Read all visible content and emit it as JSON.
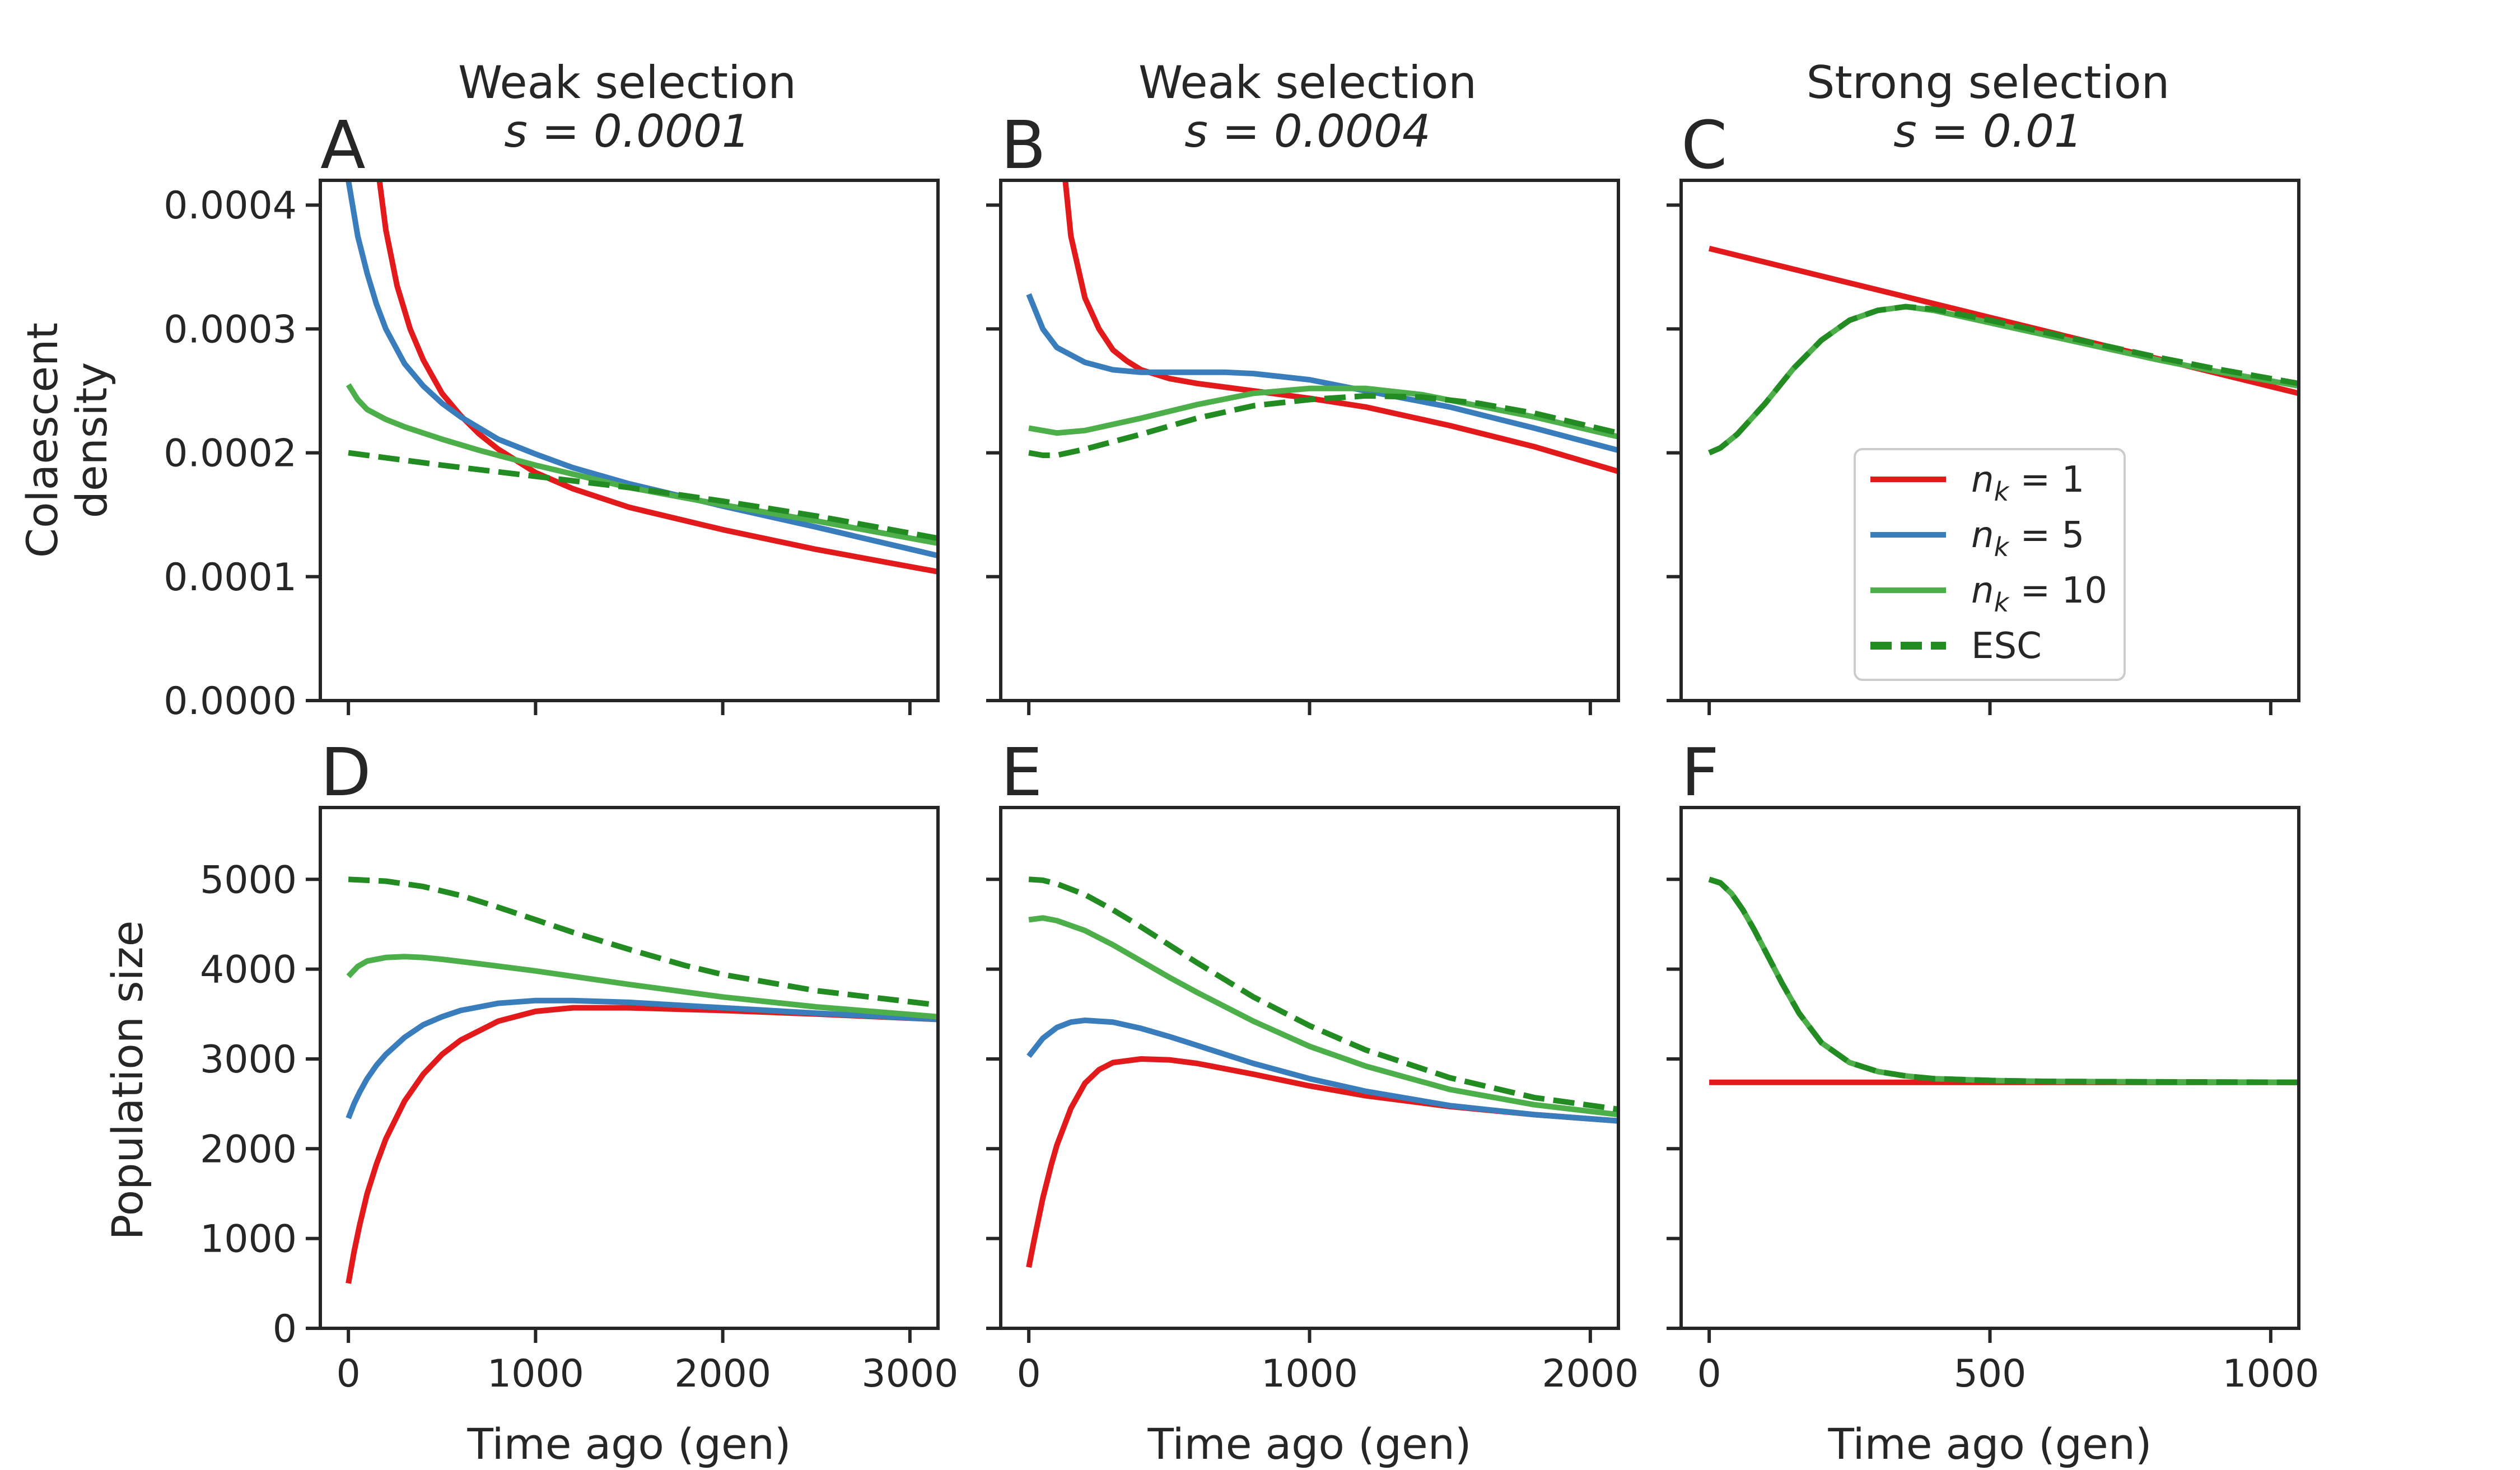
{
  "columns": [
    {
      "title": "Weak selection",
      "param": "s = 0.0001"
    },
    {
      "title": "Weak selection",
      "param": "s = 0.0004"
    },
    {
      "title": "Strong selection",
      "param": "s = 0.01"
    }
  ],
  "panel_letters": [
    "A",
    "B",
    "C",
    "D",
    "E",
    "F"
  ],
  "x_axis_label": "Time ago (gen)",
  "row_labels": {
    "top": [
      "Colaescent",
      "density"
    ],
    "bottom": "Population size"
  },
  "legend": {
    "entries": [
      {
        "key": "n1",
        "label_main": "n",
        "label_sub": "k",
        "label_tail": " = 1"
      },
      {
        "key": "n5",
        "label_main": "n",
        "label_sub": "k",
        "label_tail": " = 5"
      },
      {
        "key": "n10",
        "label_main": "n",
        "label_sub": "k",
        "label_tail": " = 10"
      },
      {
        "key": "esc",
        "label_main": "ESC",
        "label_sub": "",
        "label_tail": ""
      }
    ]
  },
  "colors": {
    "n1": "#e31a1c",
    "n5": "#3a7dbc",
    "n10": "#4daf4a",
    "esc": "#228b22"
  },
  "chart_data": {
    "type": "line",
    "layout": "2x3 grid",
    "series_styles": {
      "n1": {
        "color": "#e31a1c",
        "dash": "solid"
      },
      "n5": {
        "color": "#3a7dbc",
        "dash": "solid"
      },
      "n10": {
        "color": "#4daf4a",
        "dash": "solid"
      },
      "esc": {
        "color": "#228b22",
        "dash": "dashed"
      }
    },
    "columns": [
      {
        "xlim": [
          -150,
          3150
        ],
        "xticks": [
          0,
          1000,
          2000,
          3000
        ],
        "xtick_labels": [
          "0",
          "1000",
          "2000",
          "3000"
        ]
      },
      {
        "xlim": [
          -100,
          2100
        ],
        "xticks": [
          0,
          1000,
          2000
        ],
        "xtick_labels": [
          "0",
          "1000",
          "2000"
        ]
      },
      {
        "xlim": [
          -50,
          1050
        ],
        "xticks": [
          0,
          500,
          1000
        ],
        "xtick_labels": [
          "0",
          "500",
          "1000"
        ]
      }
    ],
    "rows": [
      {
        "ylim": [
          0,
          0.00042
        ],
        "yticks": [
          0,
          0.0001,
          0.0002,
          0.0003,
          0.0004
        ],
        "ytick_labels": [
          "0.0000",
          "0.0001",
          "0.0002",
          "0.0003",
          "0.0004"
        ]
      },
      {
        "ylim": [
          0,
          5800
        ],
        "yticks": [
          0,
          1000,
          2000,
          3000,
          4000,
          5000
        ],
        "ytick_labels": [
          "0",
          "1000",
          "2000",
          "3000",
          "4000",
          "5000"
        ]
      }
    ],
    "panels": [
      {
        "letter": "A",
        "row": 0,
        "col": 0,
        "series": [
          {
            "key": "n1",
            "x": [
              140,
              200,
              260,
              330,
              400,
              500,
              600,
              700,
              800,
              1000,
              1200,
              1500,
              2000,
              2500,
              3150
            ],
            "y": [
              0.00045,
              0.00038,
              0.000335,
              0.0003,
              0.000275,
              0.000248,
              0.00023,
              0.000215,
              0.000203,
              0.000184,
              0.000171,
              0.000156,
              0.000138,
              0.000122,
              0.000104
            ]
          },
          {
            "key": "n5",
            "x": [
              0,
              50,
              100,
              150,
              200,
              300,
              400,
              500,
              600,
              800,
              1000,
              1200,
              1500,
              2000,
              2500,
              3150
            ],
            "y": [
              0.00042,
              0.000375,
              0.000345,
              0.00032,
              0.0003,
              0.000272,
              0.000254,
              0.00024,
              0.000229,
              0.000211,
              0.000199,
              0.000188,
              0.000175,
              0.000157,
              0.00014,
              0.000117
            ]
          },
          {
            "key": "n10",
            "x": [
              0,
              50,
              100,
              200,
              300,
              400,
              500,
              700,
              1000,
              1500,
              2000,
              2500,
              3150
            ],
            "y": [
              0.000255,
              0.000243,
              0.000235,
              0.000227,
              0.000221,
              0.000216,
              0.000211,
              0.000202,
              0.00019,
              0.000172,
              0.000158,
              0.000145,
              0.000127
            ]
          },
          {
            "key": "esc",
            "x": [
              0,
              500,
              1000,
              1500,
              2000,
              2500,
              3150
            ],
            "y": [
              0.0002,
              0.00019,
              0.000181,
              0.000172,
              0.000161,
              0.000149,
              0.000131
            ]
          }
        ]
      },
      {
        "letter": "B",
        "row": 0,
        "col": 1,
        "series": [
          {
            "key": "n1",
            "x": [
              130,
              150,
              200,
              250,
              300,
              350,
              400,
              500,
              600,
              800,
              1000,
              1200,
              1500,
              1800,
              2100
            ],
            "y": [
              0.00042,
              0.000375,
              0.000325,
              0.0003,
              0.000283,
              0.000274,
              0.000267,
              0.00026,
              0.000256,
              0.00025,
              0.000244,
              0.000237,
              0.000222,
              0.000205,
              0.000185
            ]
          },
          {
            "key": "n5",
            "x": [
              0,
              50,
              100,
              200,
              300,
              400,
              500,
              700,
              800,
              1000,
              1200,
              1500,
              1800,
              2100
            ],
            "y": [
              0.000328,
              0.0003,
              0.000285,
              0.000273,
              0.000267,
              0.000265,
              0.000265,
              0.000265,
              0.000264,
              0.000259,
              0.00025,
              0.000237,
              0.00022,
              0.000202
            ]
          },
          {
            "key": "n10",
            "x": [
              0,
              100,
              200,
              400,
              600,
              800,
              1000,
              1200,
              1400,
              1600,
              1800,
              2100
            ],
            "y": [
              0.00022,
              0.000216,
              0.000218,
              0.000228,
              0.000239,
              0.000248,
              0.000252,
              0.000252,
              0.000247,
              0.000238,
              0.000229,
              0.000213
            ]
          },
          {
            "key": "esc",
            "x": [
              0,
              50,
              100,
              200,
              400,
              600,
              800,
              1000,
              1200,
              1400,
              1600,
              1800,
              2100
            ],
            "y": [
              0.0002,
              0.000198,
              0.000198,
              0.000203,
              0.000215,
              0.000228,
              0.000238,
              0.000243,
              0.000246,
              0.000245,
              0.00024,
              0.000232,
              0.000216
            ]
          }
        ]
      },
      {
        "letter": "C",
        "row": 0,
        "col": 2,
        "series": [
          {
            "key": "n1",
            "x": [
              0,
              1050
            ],
            "y": [
              0.000365,
              0.000248
            ]
          },
          {
            "key": "n10",
            "x": [
              0,
              20,
              50,
              100,
              150,
              200,
              250,
              300,
              350,
              400,
              500,
              600,
              700,
              800,
              900,
              1050
            ],
            "y": [
              0.0002,
              0.000204,
              0.000215,
              0.00024,
              0.000268,
              0.000291,
              0.000307,
              0.000315,
              0.000318,
              0.000315,
              0.000305,
              0.000295,
              0.000285,
              0.000275,
              0.000266,
              0.000254
            ]
          },
          {
            "key": "esc",
            "x": [
              0,
              20,
              50,
              100,
              150,
              200,
              250,
              300,
              350,
              400,
              500,
              600,
              700,
              800,
              900,
              1050
            ],
            "y": [
              0.0002,
              0.000204,
              0.000215,
              0.00024,
              0.000268,
              0.000291,
              0.000307,
              0.000315,
              0.000318,
              0.000316,
              0.000307,
              0.000297,
              0.000287,
              0.000277,
              0.000268,
              0.000256
            ]
          }
        ]
      },
      {
        "letter": "D",
        "row": 1,
        "col": 0,
        "series": [
          {
            "key": "n1",
            "x": [
              0,
              30,
              60,
              100,
              150,
              200,
              300,
              400,
              500,
              600,
              800,
              1000,
              1200,
              1500,
              2000,
              2500,
              3150
            ],
            "y": [
              500,
              850,
              1150,
              1500,
              1830,
              2110,
              2530,
              2830,
              3050,
              3210,
              3420,
              3530,
              3570,
              3570,
              3540,
              3500,
              3440
            ]
          },
          {
            "key": "n5",
            "x": [
              0,
              30,
              60,
              100,
              150,
              200,
              300,
              400,
              500,
              600,
              800,
              1000,
              1200,
              1500,
              2000,
              2500,
              3150
            ],
            "y": [
              2340,
              2500,
              2630,
              2780,
              2930,
              3050,
              3240,
              3380,
              3470,
              3540,
              3620,
              3650,
              3650,
              3630,
              3570,
              3510,
              3440
            ]
          },
          {
            "key": "n10",
            "x": [
              0,
              50,
              100,
              200,
              300,
              400,
              500,
              700,
              1000,
              1500,
              2000,
              2500,
              3150
            ],
            "y": [
              3920,
              4030,
              4090,
              4130,
              4140,
              4130,
              4110,
              4060,
              3980,
              3830,
              3690,
              3580,
              3470
            ]
          },
          {
            "key": "esc",
            "x": [
              0,
              200,
              400,
              600,
              800,
              1000,
              1200,
              1500,
              1800,
              2000,
              2500,
              3150
            ],
            "y": [
              5000,
              4980,
              4920,
              4820,
              4690,
              4550,
              4410,
              4220,
              4040,
              3940,
              3760,
              3600
            ]
          }
        ]
      },
      {
        "letter": "E",
        "row": 1,
        "col": 1,
        "series": [
          {
            "key": "n1",
            "x": [
              0,
              20,
              50,
              80,
              100,
              150,
              200,
              250,
              300,
              400,
              500,
              600,
              800,
              1000,
              1200,
              1500,
              1800,
              2100
            ],
            "y": [
              680,
              1000,
              1450,
              1820,
              2040,
              2450,
              2730,
              2880,
              2960,
              3000,
              2990,
              2950,
              2830,
              2700,
              2590,
              2470,
              2380,
              2310
            ]
          },
          {
            "key": "n5",
            "x": [
              0,
              50,
              100,
              150,
              200,
              300,
              400,
              500,
              600,
              800,
              1000,
              1200,
              1500,
              1800,
              2100
            ],
            "y": [
              3030,
              3230,
              3350,
              3410,
              3430,
              3410,
              3340,
              3250,
              3150,
              2950,
              2780,
              2640,
              2480,
              2380,
              2310
            ]
          },
          {
            "key": "n10",
            "x": [
              0,
              50,
              100,
              200,
              300,
              400,
              500,
              600,
              800,
              1000,
              1200,
              1500,
              1800,
              2100
            ],
            "y": [
              4550,
              4570,
              4540,
              4430,
              4270,
              4090,
              3910,
              3740,
              3420,
              3140,
              2920,
              2660,
              2490,
              2380
            ]
          },
          {
            "key": "esc",
            "x": [
              0,
              50,
              100,
              200,
              300,
              400,
              500,
              600,
              800,
              1000,
              1200,
              1500,
              1800,
              2100
            ],
            "y": [
              5000,
              4990,
              4950,
              4830,
              4660,
              4470,
              4270,
              4070,
              3690,
              3370,
              3100,
              2790,
              2570,
              2440
            ]
          }
        ]
      },
      {
        "letter": "F",
        "row": 1,
        "col": 2,
        "series": [
          {
            "key": "n1",
            "x": [
              0,
              1050
            ],
            "y": [
              2740,
              2740
            ]
          },
          {
            "key": "n10",
            "x": [
              0,
              20,
              40,
              60,
              80,
              100,
              130,
              160,
              200,
              250,
              300,
              350,
              400,
              500,
              600,
              800,
              1050
            ],
            "y": [
              5000,
              4960,
              4840,
              4660,
              4440,
              4200,
              3840,
              3510,
              3180,
              2960,
              2860,
              2810,
              2780,
              2760,
              2750,
              2745,
              2740
            ]
          },
          {
            "key": "esc",
            "x": [
              0,
              20,
              40,
              60,
              80,
              100,
              130,
              160,
              200,
              250,
              300,
              350,
              400,
              500,
              600,
              800,
              1050
            ],
            "y": [
              5000,
              4960,
              4840,
              4660,
              4440,
              4200,
              3840,
              3510,
              3180,
              2960,
              2860,
              2810,
              2780,
              2760,
              2750,
              2745,
              2740
            ]
          }
        ]
      }
    ]
  }
}
